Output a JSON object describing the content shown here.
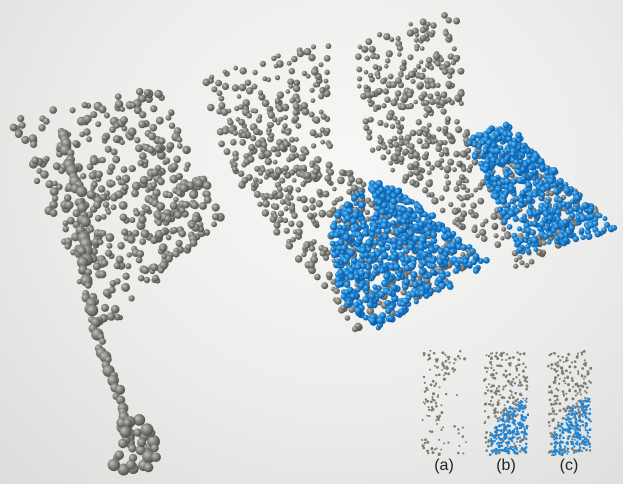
{
  "scene": {
    "colors": {
      "particle_gray": "#7f7f7a",
      "particle_gray_light": "#a4a49f",
      "particle_gray_dark": "#54544f",
      "particle_blue": "#1f86d6",
      "particle_blue_light": "#4fb0ee",
      "particle_blue_dark": "#0f5ea8"
    },
    "panels": [
      "cloth-flag",
      "cloth-with-fluid-b",
      "cloth-with-fluid-c"
    ]
  },
  "insets": [
    {
      "label": "(a)"
    },
    {
      "label": "(b)"
    },
    {
      "label": "(c)"
    }
  ]
}
